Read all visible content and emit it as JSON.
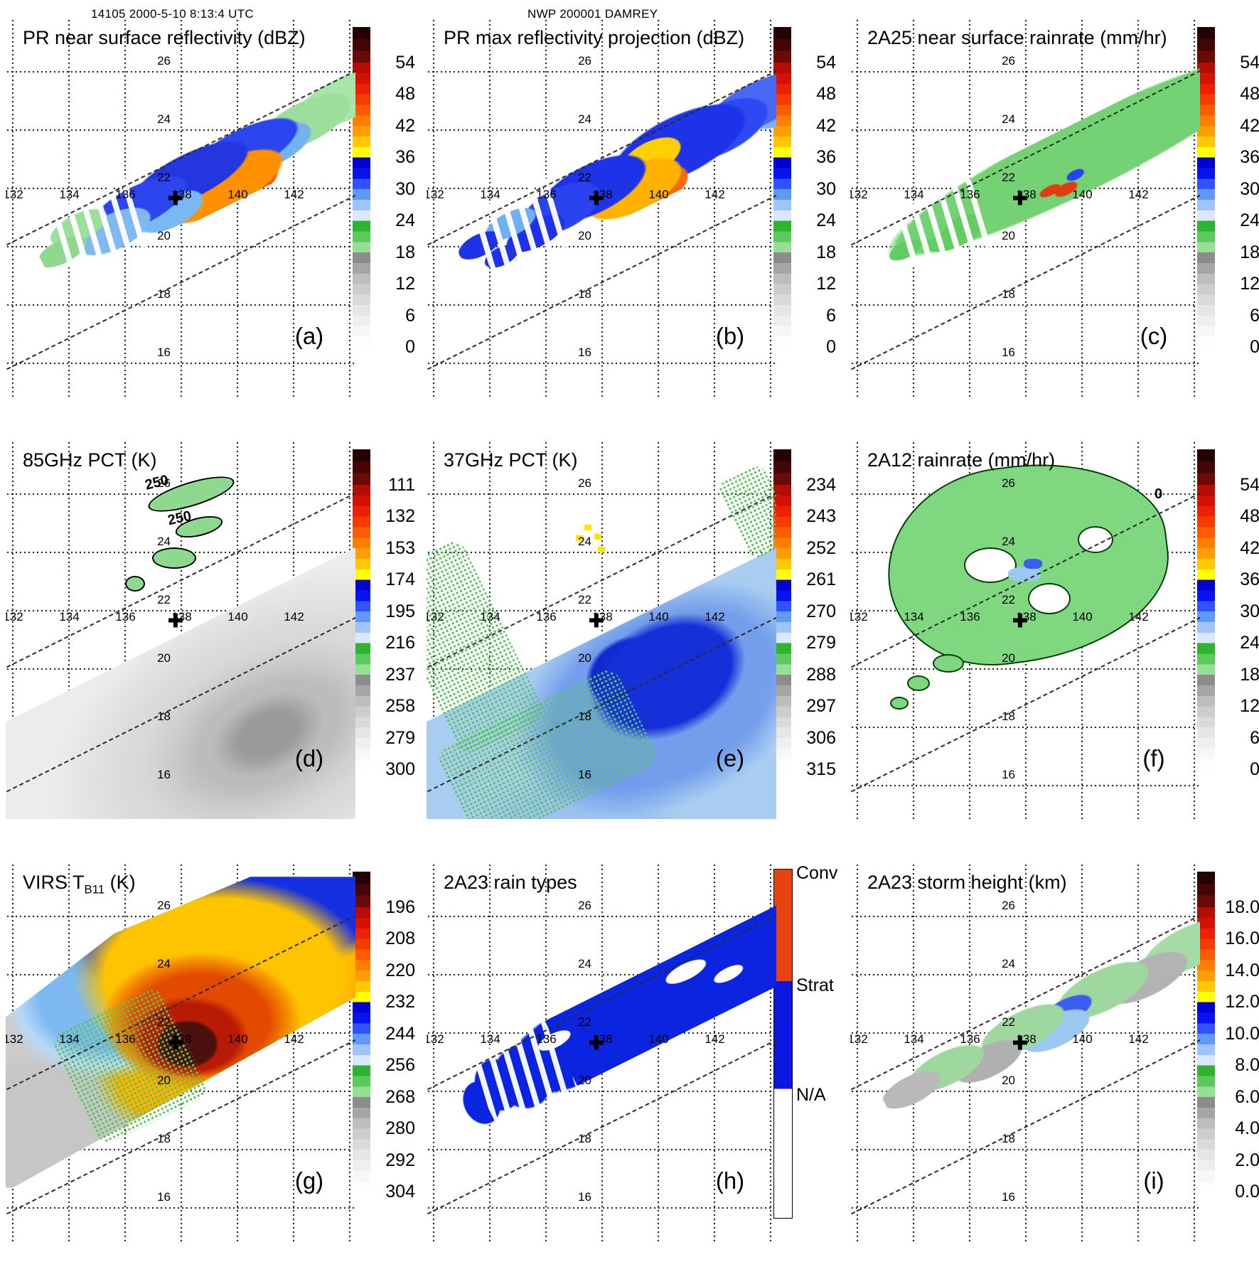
{
  "figure": {
    "header_left": "14105 2000-5-10 8:13:4 UTC",
    "header_center": "NWP 200001 DAMREY"
  },
  "axes": {
    "lon": [
      "132",
      "134",
      "136",
      "138",
      "140",
      "142"
    ],
    "lat": [
      "26",
      "24",
      "22",
      "20",
      "18",
      "16"
    ]
  },
  "marker": {
    "symbol": "✚",
    "lon_approx": 137.8,
    "lat_approx": 21.4
  },
  "panels": {
    "a": {
      "title": "PR near surface reflectivity (dBZ)",
      "letter": "(a)",
      "cb_ticks": [
        "54",
        "48",
        "42",
        "36",
        "30",
        "24",
        "18",
        "12",
        "6",
        "0"
      ]
    },
    "b": {
      "title": "PR max reflectivity projection (dBZ)",
      "letter": "(b)",
      "cb_ticks": [
        "54",
        "48",
        "42",
        "36",
        "30",
        "24",
        "18",
        "12",
        "6",
        "0"
      ]
    },
    "c": {
      "title": "2A25 near surface rainrate (mm/hr)",
      "letter": "(c)",
      "cb_ticks": [
        "54",
        "48",
        "42",
        "36",
        "30",
        "24",
        "18",
        "12",
        "6",
        "0"
      ]
    },
    "d": {
      "title": "85GHz PCT (K)",
      "letter": "(d)",
      "cb_ticks": [
        "111",
        "132",
        "153",
        "174",
        "195",
        "216",
        "237",
        "258",
        "279",
        "300"
      ],
      "annotations": [
        "250",
        "250"
      ]
    },
    "e": {
      "title": "37GHz PCT (K)",
      "letter": "(e)",
      "cb_ticks": [
        "234",
        "243",
        "252",
        "261",
        "270",
        "279",
        "288",
        "297",
        "306",
        "315"
      ]
    },
    "f": {
      "title": "2A12 rainrate (mm/hr)",
      "letter": "(f)",
      "cb_ticks": [
        "54",
        "48",
        "42",
        "36",
        "30",
        "24",
        "18",
        "12",
        "6",
        "0"
      ],
      "annotations": [
        "0"
      ]
    },
    "g": {
      "title_pre": "VIRS T",
      "title_sub": "B11",
      "title_post": " (K)",
      "letter": "(g)",
      "cb_ticks": [
        "196",
        "208",
        "220",
        "232",
        "244",
        "256",
        "268",
        "280",
        "292",
        "304"
      ]
    },
    "h": {
      "title": "2A23 rain types",
      "letter": "(h)",
      "cb_labels": [
        "Conv",
        "Strat",
        "N/A"
      ]
    },
    "i": {
      "title": "2A23 storm height (km)",
      "letter": "(i)",
      "cb_ticks": [
        "18.0",
        "16.0",
        "14.0",
        "12.0",
        "10.0",
        "8.0",
        "6.0",
        "4.0",
        "2.0",
        "0.0"
      ]
    }
  },
  "chart_data": [
    {
      "panel": "(a)",
      "type": "heatmap",
      "title": "PR near surface reflectivity (dBZ)",
      "units": "dBZ",
      "colorbar_ticks": [
        54,
        48,
        42,
        36,
        30,
        24,
        18,
        12,
        6,
        0
      ],
      "lon_ticks": [
        132,
        134,
        136,
        138,
        140,
        142
      ],
      "lat_ticks": [
        26,
        24,
        22,
        20,
        18,
        16
      ],
      "lon_range_approx": [
        131.7,
        144.1
      ],
      "lat_range_approx": [
        14.9,
        27.8
      ],
      "storm_center_marker": {
        "lon": 137.8,
        "lat": 21.4
      },
      "grid": "dotted",
      "content": "narrow SW-NE TRMM PR swath; spiral rainbands 18-35 dBZ; convective core 36-50 dBZ near 137.5-139.5E, 21.5-23N"
    },
    {
      "panel": "(b)",
      "type": "heatmap",
      "title": "PR max reflectivity projection (dBZ)",
      "units": "dBZ",
      "colorbar_ticks": [
        54,
        48,
        42,
        36,
        30,
        24,
        18,
        12,
        6,
        0
      ],
      "content": "same swath with fuller echo coverage, black echo contours, yellow-orange 36-48 dBZ core near 137-139.5E"
    },
    {
      "panel": "(c)",
      "type": "heatmap",
      "title": "2A25 near surface rainrate (mm/hr)",
      "units": "mm/hr",
      "colorbar_ticks": [
        54,
        48,
        42,
        36,
        30,
        24,
        18,
        12,
        6,
        0
      ],
      "content": "swath mostly light rain (green, <6 mm/hr) with scattered blue/red heavy-rain pixels near 137.5-139E, 21.5-22.5N"
    },
    {
      "panel": "(d)",
      "type": "heatmap",
      "title": "85GHz PCT (K)",
      "units": "K",
      "colorbar_ticks": [
        111,
        132,
        153,
        174,
        195,
        216,
        237,
        258,
        279,
        300
      ],
      "contour_labels": [
        250,
        250
      ],
      "content": "wide TMI swath, grayscale PCT ~260-300K with ring structure; small green (~230K) depressed-PCT cells inside 250K contours near storm center"
    },
    {
      "panel": "(e)",
      "type": "heatmap",
      "title": "37GHz PCT (K)",
      "units": "K",
      "colorbar_ticks": [
        234,
        243,
        252,
        261,
        270,
        279,
        288,
        297,
        306,
        315
      ],
      "content": "wide TMI swath light blue ~275-285K; dark blue ~270K blob north of center with few yellow ~261K pixels; green ~290K speckle at swath edges"
    },
    {
      "panel": "(f)",
      "type": "heatmap",
      "title": "2A12 rainrate (mm/hr)",
      "units": "mm/hr",
      "colorbar_ticks": [
        54,
        48,
        42,
        36,
        30,
        24,
        18,
        12,
        6,
        0
      ],
      "contour_labels": [
        0
      ],
      "content": "broad green light-rain shield (<6 mm/hr) with embedded light-blue ~12 mm/hr patches and white no-rain holes; 0 contour outline"
    },
    {
      "panel": "(g)",
      "type": "heatmap",
      "title": "VIRS T_B11 (K)",
      "units": "K",
      "colorbar_ticks": [
        196,
        208,
        220,
        232,
        244,
        256,
        268,
        280,
        292,
        304
      ],
      "content": "wide VIRS IR swath; warm gray ocean ~290-300K lower left, blue/cyan 240-260K bands, yellow-orange 210-230K cloud shield, dark red <200K overshooting tops at storm center"
    },
    {
      "panel": "(h)",
      "type": "categorical-map",
      "title": "2A23 rain types",
      "categories": [
        "Conv",
        "Strat",
        "N/A"
      ],
      "category_colors": {
        "Conv": "#e8430e",
        "Strat": "#0b16e0",
        "N/A": "#ffffff"
      },
      "content": "PR swath mostly stratiform (blue) with scattered convective (orange-red) clusters near 137-139.5E, 21.5-23.5N"
    },
    {
      "panel": "(i)",
      "type": "heatmap",
      "title": "2A23 storm height (km)",
      "units": "km",
      "colorbar_ticks": [
        18.0,
        16.0,
        14.0,
        12.0,
        10.0,
        8.0,
        6.0,
        4.0,
        2.0,
        0.0
      ],
      "content": "PR swath storm heights mostly 2-6 km (gray/green speckle) with 8-10 km (light blue/blue) patch near core"
    }
  ],
  "notes": {
    "dashed_lines": "two parallel SW-NE dashed lines mark swath boundaries in every panel",
    "colorbar_style": "discrete rainbow: dark red (high) - red - orange - yellow - blue - light blue - green - gray - white (low)"
  }
}
